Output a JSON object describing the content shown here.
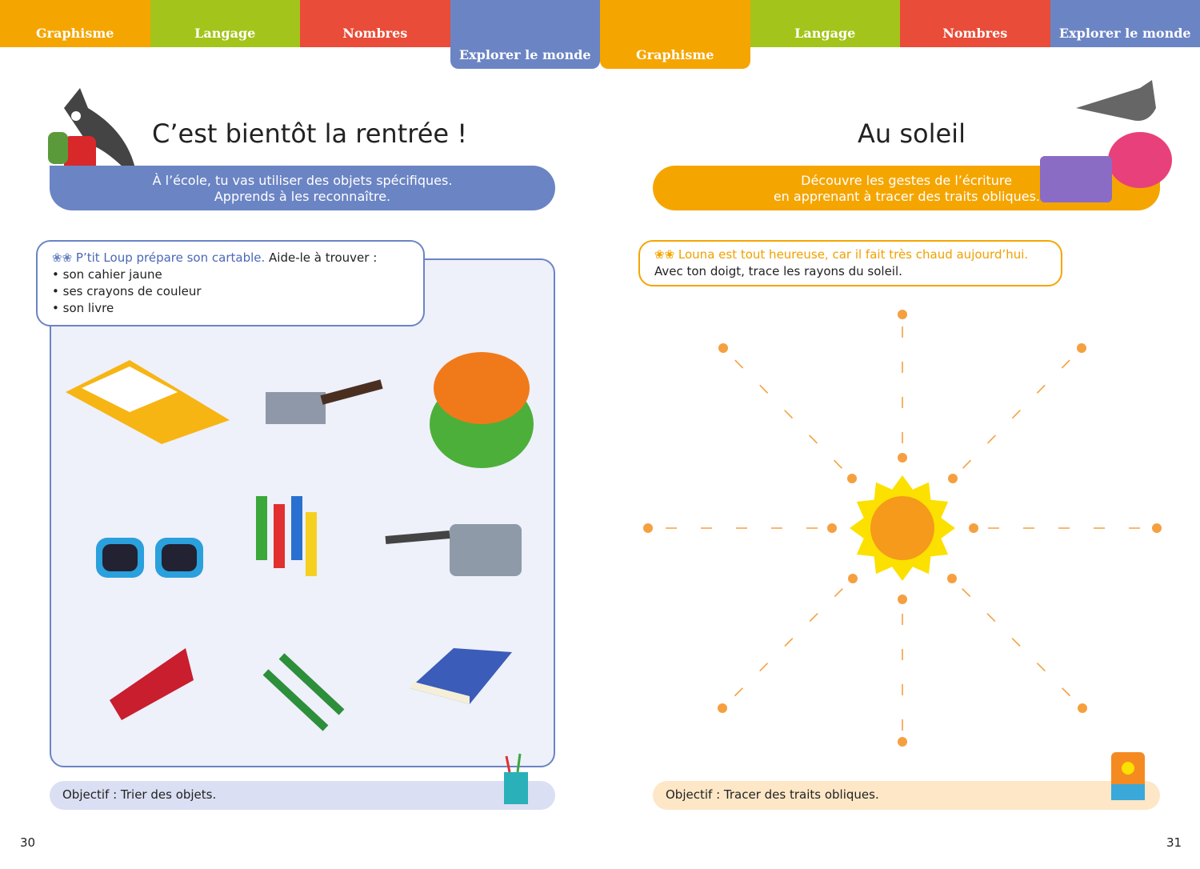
{
  "tabs": [
    {
      "label": "Graphisme",
      "color": "#f5a500"
    },
    {
      "label": "Langage",
      "color": "#a3c41a"
    },
    {
      "label": "Nombres",
      "color": "#e94c38"
    },
    {
      "label": "Explorer le monde",
      "color": "#6b84c4"
    },
    {
      "label": "Graphisme",
      "color": "#f5a500"
    },
    {
      "label": "Langage",
      "color": "#a3c41a"
    },
    {
      "label": "Nombres",
      "color": "#e94c38"
    },
    {
      "label": "Explorer le monde",
      "color": "#6b84c4"
    }
  ],
  "left": {
    "title": "C’est bientôt la rentrée !",
    "banner": [
      "À l’école, tu vas utiliser des objets spécifiques.",
      "Apprends à les reconnaître."
    ],
    "instruction_lead": "P’tit Loup prépare son cartable.",
    "instruction_rest": " Aide-le à trouver :",
    "items": [
      "son cahier jaune",
      "ses crayons de couleur",
      "son livre"
    ],
    "objective_label": "Objectif",
    "objective_text": " : Trier des objets.",
    "page_number": "30",
    "accent": "#6b84c4"
  },
  "right": {
    "title": "Au soleil",
    "banner": [
      "Découvre les gestes de l’écriture",
      "en apprenant à tracer des traits obliques."
    ],
    "instruction_lead": "Louna est tout heureuse, car il fait très chaud aujourd’hui.",
    "instruction_rest": "Avec ton doigt, trace les rayons du soleil.",
    "objective_label": "Objectif",
    "objective_text": " : Tracer des traits obliques.",
    "page_number": "31",
    "accent": "#f5a500"
  }
}
